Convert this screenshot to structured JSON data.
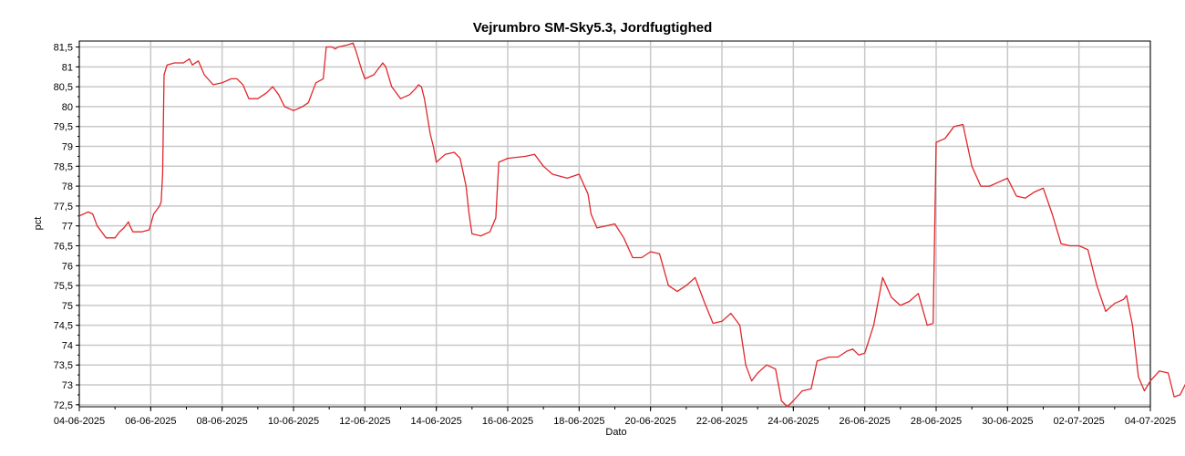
{
  "chart_data": {
    "type": "line",
    "title": "Vejrumbro SM-Sky5.3, Jordfugtighed",
    "xlabel": "Dato",
    "ylabel": "pct",
    "xlim": [
      "2025-06-04",
      "2025-07-04"
    ],
    "ylim": [
      72.45,
      81.65
    ],
    "grid": true,
    "legend": "none",
    "x_ticks": [
      "04-06-2025",
      "06-06-2025",
      "08-06-2025",
      "10-06-2025",
      "12-06-2025",
      "14-06-2025",
      "16-06-2025",
      "18-06-2025",
      "20-06-2025",
      "22-06-2025",
      "24-06-2025",
      "26-06-2025",
      "28-06-2025",
      "30-06-2025",
      "02-07-2025",
      "04-07-2025"
    ],
    "y_ticks": [
      "72,5",
      "73",
      "73,5",
      "74",
      "74,5",
      "75",
      "75,5",
      "76",
      "76,5",
      "77",
      "77,5",
      "78",
      "78,5",
      "79",
      "79,5",
      "80",
      "80,5",
      "81",
      "81,5"
    ],
    "series": [
      {
        "name": "",
        "color": "#e0272b",
        "points": [
          [
            "2025-06-04 00:00",
            77.25
          ],
          [
            "2025-06-04 06:00",
            77.35
          ],
          [
            "2025-06-04 09:00",
            77.3
          ],
          [
            "2025-06-04 12:00",
            77.0
          ],
          [
            "2025-06-04 18:00",
            76.7
          ],
          [
            "2025-06-05 00:00",
            76.7
          ],
          [
            "2025-06-05 03:00",
            76.85
          ],
          [
            "2025-06-05 06:00",
            76.95
          ],
          [
            "2025-06-05 09:00",
            77.1
          ],
          [
            "2025-06-05 10:00",
            77.0
          ],
          [
            "2025-06-05 12:00",
            76.85
          ],
          [
            "2025-06-05 18:00",
            76.85
          ],
          [
            "2025-06-05 23:00",
            76.9
          ],
          [
            "2025-06-06 02:00",
            77.3
          ],
          [
            "2025-06-06 06:00",
            77.5
          ],
          [
            "2025-06-06 07:00",
            77.6
          ],
          [
            "2025-06-06 08:00",
            78.3
          ],
          [
            "2025-06-06 09:00",
            80.8
          ],
          [
            "2025-06-06 11:00",
            81.05
          ],
          [
            "2025-06-06 16:00",
            81.1
          ],
          [
            "2025-06-06 22:00",
            81.1
          ],
          [
            "2025-06-07 02:00",
            81.2
          ],
          [
            "2025-06-07 04:00",
            81.05
          ],
          [
            "2025-06-07 08:00",
            81.15
          ],
          [
            "2025-06-07 12:00",
            80.8
          ],
          [
            "2025-06-07 18:00",
            80.55
          ],
          [
            "2025-06-08 00:00",
            80.6
          ],
          [
            "2025-06-08 06:00",
            80.7
          ],
          [
            "2025-06-08 10:00",
            80.7
          ],
          [
            "2025-06-08 14:00",
            80.55
          ],
          [
            "2025-06-08 18:00",
            80.2
          ],
          [
            "2025-06-09 00:00",
            80.2
          ],
          [
            "2025-06-09 06:00",
            80.35
          ],
          [
            "2025-06-09 10:00",
            80.5
          ],
          [
            "2025-06-09 14:00",
            80.3
          ],
          [
            "2025-06-09 18:00",
            80.0
          ],
          [
            "2025-06-10 00:00",
            79.9
          ],
          [
            "2025-06-10 06:00",
            80.0
          ],
          [
            "2025-06-10 10:00",
            80.1
          ],
          [
            "2025-06-10 12:00",
            80.3
          ],
          [
            "2025-06-10 15:00",
            80.6
          ],
          [
            "2025-06-10 20:00",
            80.7
          ],
          [
            "2025-06-10 22:00",
            81.5
          ],
          [
            "2025-06-11 02:00",
            81.5
          ],
          [
            "2025-06-11 04:00",
            81.45
          ],
          [
            "2025-06-11 06:00",
            81.5
          ],
          [
            "2025-06-11 12:00",
            81.55
          ],
          [
            "2025-06-11 16:00",
            81.6
          ],
          [
            "2025-06-11 18:00",
            81.4
          ],
          [
            "2025-06-11 22:00",
            80.9
          ],
          [
            "2025-06-12 00:00",
            80.7
          ],
          [
            "2025-06-12 06:00",
            80.8
          ],
          [
            "2025-06-12 12:00",
            81.1
          ],
          [
            "2025-06-12 14:00",
            81.0
          ],
          [
            "2025-06-12 18:00",
            80.5
          ],
          [
            "2025-06-13 00:00",
            80.2
          ],
          [
            "2025-06-13 06:00",
            80.3
          ],
          [
            "2025-06-13 10:00",
            80.45
          ],
          [
            "2025-06-13 12:00",
            80.55
          ],
          [
            "2025-06-13 14:00",
            80.5
          ],
          [
            "2025-06-13 16:00",
            80.2
          ],
          [
            "2025-06-13 20:00",
            79.3
          ],
          [
            "2025-06-13 22:00",
            79.0
          ],
          [
            "2025-06-14 00:00",
            78.6
          ],
          [
            "2025-06-14 06:00",
            78.8
          ],
          [
            "2025-06-14 12:00",
            78.85
          ],
          [
            "2025-06-14 16:00",
            78.7
          ],
          [
            "2025-06-14 20:00",
            78.0
          ],
          [
            "2025-06-14 22:00",
            77.3
          ],
          [
            "2025-06-15 00:00",
            76.8
          ],
          [
            "2025-06-15 06:00",
            76.75
          ],
          [
            "2025-06-15 12:00",
            76.85
          ],
          [
            "2025-06-15 16:00",
            77.2
          ],
          [
            "2025-06-15 18:00",
            78.6
          ],
          [
            "2025-06-16 00:00",
            78.7
          ],
          [
            "2025-06-16 12:00",
            78.75
          ],
          [
            "2025-06-16 18:00",
            78.8
          ],
          [
            "2025-06-17 00:00",
            78.5
          ],
          [
            "2025-06-17 06:00",
            78.3
          ],
          [
            "2025-06-17 16:00",
            78.2
          ],
          [
            "2025-06-18 00:00",
            78.3
          ],
          [
            "2025-06-18 06:00",
            77.8
          ],
          [
            "2025-06-18 08:00",
            77.3
          ],
          [
            "2025-06-18 12:00",
            76.95
          ],
          [
            "2025-06-18 18:00",
            77.0
          ],
          [
            "2025-06-19 00:00",
            77.05
          ],
          [
            "2025-06-19 06:00",
            76.7
          ],
          [
            "2025-06-19 12:00",
            76.2
          ],
          [
            "2025-06-19 18:00",
            76.2
          ],
          [
            "2025-06-20 00:00",
            76.35
          ],
          [
            "2025-06-20 06:00",
            76.3
          ],
          [
            "2025-06-20 12:00",
            75.5
          ],
          [
            "2025-06-20 18:00",
            75.35
          ],
          [
            "2025-06-21 00:00",
            75.5
          ],
          [
            "2025-06-21 06:00",
            75.7
          ],
          [
            "2025-06-21 12:00",
            75.1
          ],
          [
            "2025-06-21 18:00",
            74.55
          ],
          [
            "2025-06-22 00:00",
            74.6
          ],
          [
            "2025-06-22 06:00",
            74.8
          ],
          [
            "2025-06-22 12:00",
            74.5
          ],
          [
            "2025-06-22 16:00",
            73.5
          ],
          [
            "2025-06-22 20:00",
            73.1
          ],
          [
            "2025-06-23 00:00",
            73.3
          ],
          [
            "2025-06-23 06:00",
            73.5
          ],
          [
            "2025-06-23 12:00",
            73.4
          ],
          [
            "2025-06-23 16:00",
            72.6
          ],
          [
            "2025-06-23 20:00",
            72.45
          ],
          [
            "2025-06-24 00:00",
            72.6
          ],
          [
            "2025-06-24 06:00",
            72.85
          ],
          [
            "2025-06-24 12:00",
            72.9
          ],
          [
            "2025-06-24 16:00",
            73.6
          ],
          [
            "2025-06-25 00:00",
            73.7
          ],
          [
            "2025-06-25 06:00",
            73.7
          ],
          [
            "2025-06-25 12:00",
            73.85
          ],
          [
            "2025-06-25 16:00",
            73.9
          ],
          [
            "2025-06-25 20:00",
            73.75
          ],
          [
            "2025-06-26 00:00",
            73.8
          ],
          [
            "2025-06-26 06:00",
            74.5
          ],
          [
            "2025-06-26 12:00",
            75.7
          ],
          [
            "2025-06-26 18:00",
            75.2
          ],
          [
            "2025-06-27 00:00",
            75.0
          ],
          [
            "2025-06-27 06:00",
            75.1
          ],
          [
            "2025-06-27 12:00",
            75.3
          ],
          [
            "2025-06-27 18:00",
            74.5
          ],
          [
            "2025-06-27 22:00",
            74.55
          ],
          [
            "2025-06-28 00:00",
            79.1
          ],
          [
            "2025-06-28 06:00",
            79.2
          ],
          [
            "2025-06-28 12:00",
            79.5
          ],
          [
            "2025-06-28 18:00",
            79.55
          ],
          [
            "2025-06-29 00:00",
            78.5
          ],
          [
            "2025-06-29 06:00",
            78.0
          ],
          [
            "2025-06-29 12:00",
            78.0
          ],
          [
            "2025-06-29 18:00",
            78.1
          ],
          [
            "2025-06-30 00:00",
            78.2
          ],
          [
            "2025-06-30 06:00",
            77.75
          ],
          [
            "2025-06-30 12:00",
            77.7
          ],
          [
            "2025-06-30 18:00",
            77.85
          ],
          [
            "2025-07-01 00:00",
            77.95
          ],
          [
            "2025-07-01 06:00",
            77.3
          ],
          [
            "2025-07-01 12:00",
            76.55
          ],
          [
            "2025-07-01 18:00",
            76.5
          ],
          [
            "2025-07-02 00:00",
            76.5
          ],
          [
            "2025-07-02 06:00",
            76.4
          ],
          [
            "2025-07-02 12:00",
            75.5
          ],
          [
            "2025-07-02 18:00",
            74.85
          ],
          [
            "2025-07-03 00:00",
            75.05
          ],
          [
            "2025-07-03 06:00",
            75.15
          ],
          [
            "2025-07-03 08:00",
            75.25
          ],
          [
            "2025-07-03 12:00",
            74.5
          ],
          [
            "2025-07-03 16:00",
            73.2
          ],
          [
            "2025-07-03 20:00",
            72.85
          ],
          [
            "2025-07-04 00:00",
            73.1
          ],
          [
            "2025-07-04 06:00",
            73.35
          ],
          [
            "2025-07-04 12:00",
            73.3
          ],
          [
            "2025-07-04 16:00",
            72.7
          ],
          [
            "2025-07-04 20:00",
            72.75
          ],
          [
            "2025-07-05 00:00",
            73.05
          ]
        ]
      }
    ]
  }
}
